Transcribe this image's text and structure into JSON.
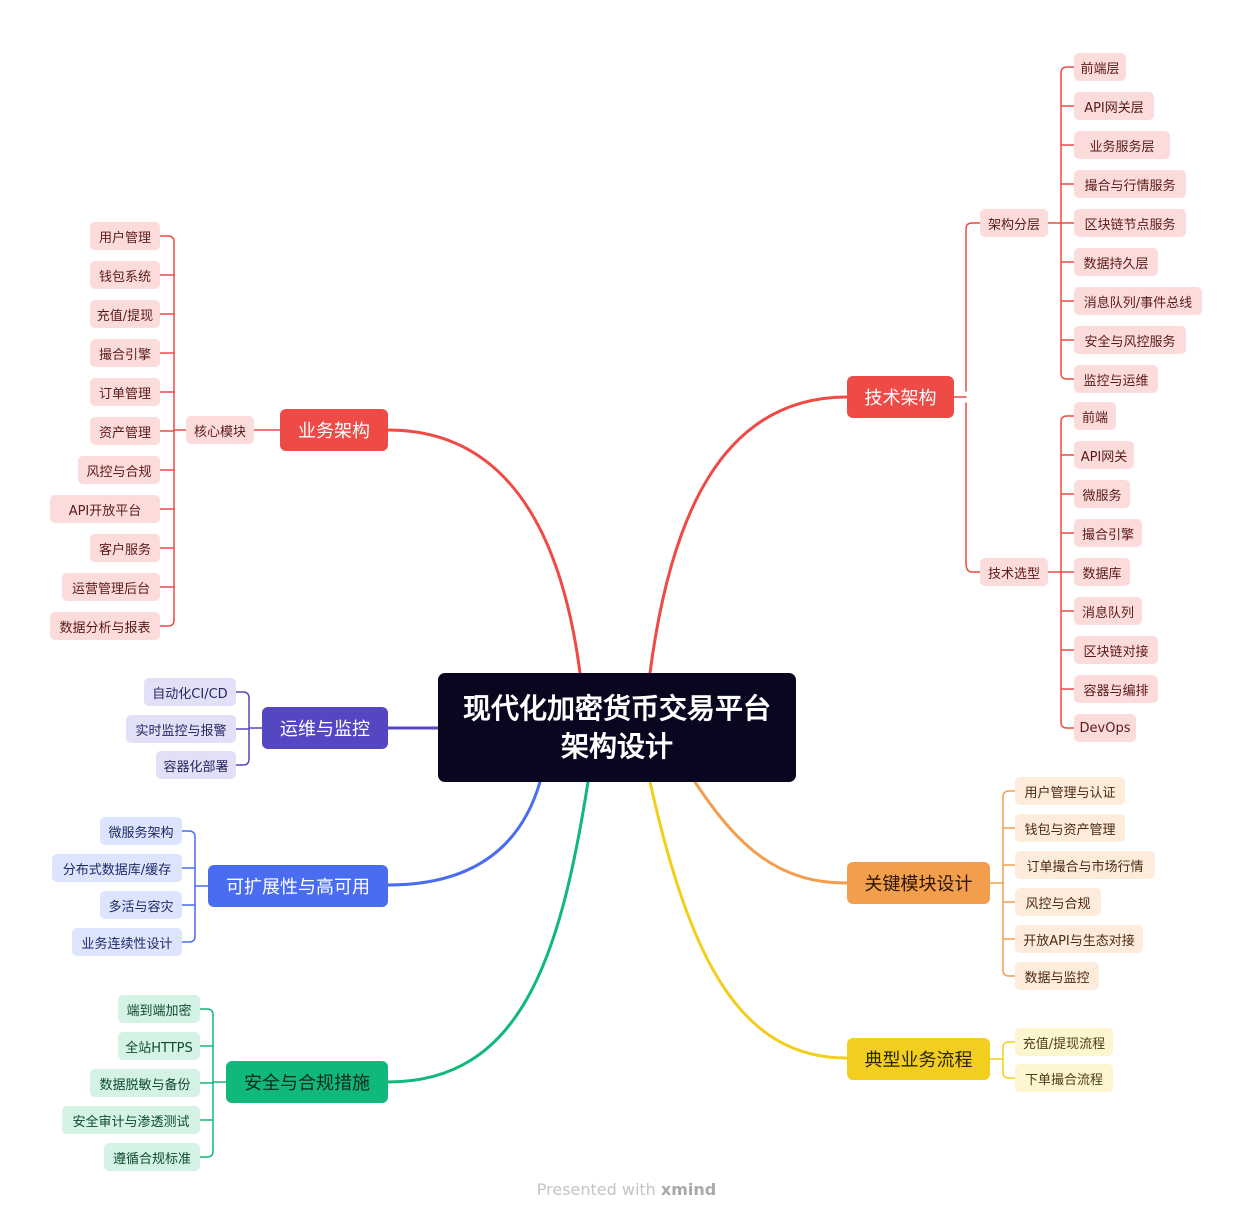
{
  "central_topic": "现代化加密货币交易平台架构设计",
  "footer": {
    "prefix": "Presented with",
    "brand": "xmind"
  },
  "colors": {
    "root": "#08071f",
    "red": "#ee4a46",
    "red_light": "#fcdcda",
    "orange": "#f39e4c",
    "orange_light": "#fdebdc",
    "yellow": "#f2cf1f",
    "yellow_light": "#fdf5cf",
    "green": "#10b87a",
    "green_light": "#d4f3e5",
    "blue": "#4a6cf0",
    "blue_light": "#dde4fd",
    "indigo": "#5546c2",
    "indigo_light": "#e2e0f6"
  },
  "branches": [
    {
      "label": "技术架构",
      "color": "red",
      "children": [
        {
          "label": "架构分层",
          "children": [
            "前端层",
            "API网关层",
            "业务服务层",
            "撮合与行情服务",
            "区块链节点服务",
            "数据持久层",
            "消息队列/事件总线",
            "安全与风控服务",
            "监控与运维"
          ]
        },
        {
          "label": "技术选型",
          "children": [
            "前端",
            "API网关",
            "微服务",
            "撮合引擎",
            "数据库",
            "消息队列",
            "区块链对接",
            "容器与编排",
            "DevOps"
          ]
        }
      ]
    },
    {
      "label": "关键模块设计",
      "color": "orange",
      "children": [
        "用户管理与认证",
        "钱包与资产管理",
        "订单撮合与市场行情",
        "风控与合规",
        "开放API与生态对接",
        "数据与监控"
      ]
    },
    {
      "label": "典型业务流程",
      "color": "yellow",
      "children": [
        "充值/提现流程",
        "下单撮合流程"
      ]
    },
    {
      "label": "业务架构",
      "color": "red",
      "children": [
        {
          "label": "核心模块",
          "children": [
            "用户管理",
            "钱包系统",
            "充值/提现",
            "撮合引擎",
            "订单管理",
            "资产管理",
            "风控与合规",
            "API开放平台",
            "客户服务",
            "运营管理后台",
            "数据分析与报表"
          ]
        }
      ]
    },
    {
      "label": "运维与监控",
      "color": "indigo",
      "children": [
        "自动化CI/CD",
        "实时监控与报警",
        "容器化部署"
      ]
    },
    {
      "label": "可扩展性与高可用",
      "color": "blue",
      "children": [
        "微服务架构",
        "分布式数据库/缓存",
        "多活与容灾",
        "业务连续性设计"
      ]
    },
    {
      "label": "安全与合规措施",
      "color": "green",
      "children": [
        "端到端加密",
        "全站HTTPS",
        "数据脱敏与备份",
        "安全审计与渗透测试",
        "遵循合规标准"
      ]
    }
  ]
}
